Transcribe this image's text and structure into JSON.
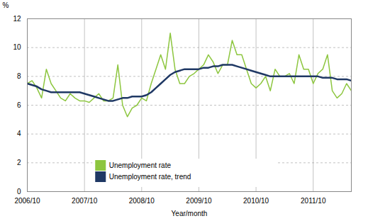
{
  "chart_data": {
    "type": "line",
    "title": "",
    "ylabel": "%",
    "xlabel": "Year/month",
    "categories": [
      "2006/10",
      null,
      null,
      null,
      null,
      null,
      null,
      null,
      null,
      null,
      null,
      null,
      "2007/10",
      null,
      null,
      null,
      null,
      null,
      null,
      null,
      null,
      null,
      null,
      null,
      "2008/10",
      null,
      null,
      null,
      null,
      null,
      null,
      null,
      null,
      null,
      null,
      null,
      "2009/10",
      null,
      null,
      null,
      null,
      null,
      null,
      null,
      null,
      null,
      null,
      null,
      "2010/10",
      null,
      null,
      null,
      null,
      null,
      null,
      null,
      null,
      null,
      null,
      null,
      "2011/10",
      null,
      null,
      null,
      null,
      null,
      null,
      null,
      null
    ],
    "series": [
      {
        "name": "Unemployment rate",
        "color": "#8dc63f",
        "values": [
          7.5,
          7.7,
          7.2,
          6.5,
          8.5,
          7.5,
          7.0,
          6.5,
          6.3,
          6.8,
          6.5,
          6.3,
          6.3,
          6.2,
          6.5,
          6.8,
          6.3,
          6.3,
          6.5,
          8.8,
          6.0,
          5.2,
          5.8,
          6.0,
          6.5,
          6.3,
          7.5,
          8.5,
          9.5,
          8.5,
          11.0,
          8.5,
          7.5,
          7.5,
          8.0,
          8.2,
          8.5,
          8.8,
          9.5,
          9.0,
          8.2,
          8.8,
          8.8,
          10.5,
          9.5,
          9.5,
          8.5,
          7.5,
          7.2,
          7.5,
          8.0,
          7.0,
          8.5,
          8.0,
          8.0,
          8.2,
          7.5,
          9.5,
          8.5,
          8.5,
          7.5,
          8.2,
          8.5,
          9.5,
          7.0,
          6.5,
          6.8,
          7.5,
          7.0
        ]
      },
      {
        "name": "Unemployment rate, trend",
        "color": "#1f3864",
        "values": [
          7.5,
          7.4,
          7.3,
          7.1,
          7.0,
          6.9,
          6.9,
          6.9,
          6.9,
          6.9,
          6.9,
          6.9,
          6.8,
          6.7,
          6.6,
          6.5,
          6.4,
          6.3,
          6.3,
          6.4,
          6.5,
          6.5,
          6.6,
          6.6,
          6.6,
          6.7,
          6.9,
          7.2,
          7.5,
          7.8,
          8.1,
          8.3,
          8.4,
          8.5,
          8.5,
          8.5,
          8.5,
          8.6,
          8.6,
          8.7,
          8.7,
          8.8,
          8.8,
          8.8,
          8.7,
          8.6,
          8.5,
          8.4,
          8.3,
          8.2,
          8.1,
          8.0,
          8.0,
          8.0,
          8.0,
          8.0,
          8.0,
          8.0,
          8.0,
          8.0,
          8.0,
          8.0,
          7.9,
          7.9,
          7.9,
          7.8,
          7.8,
          7.8,
          7.7
        ]
      }
    ],
    "ylim": [
      0,
      12
    ],
    "yticks": [
      0,
      2,
      4,
      6,
      8,
      10,
      12
    ],
    "grid": true,
    "legend": "lower center"
  }
}
